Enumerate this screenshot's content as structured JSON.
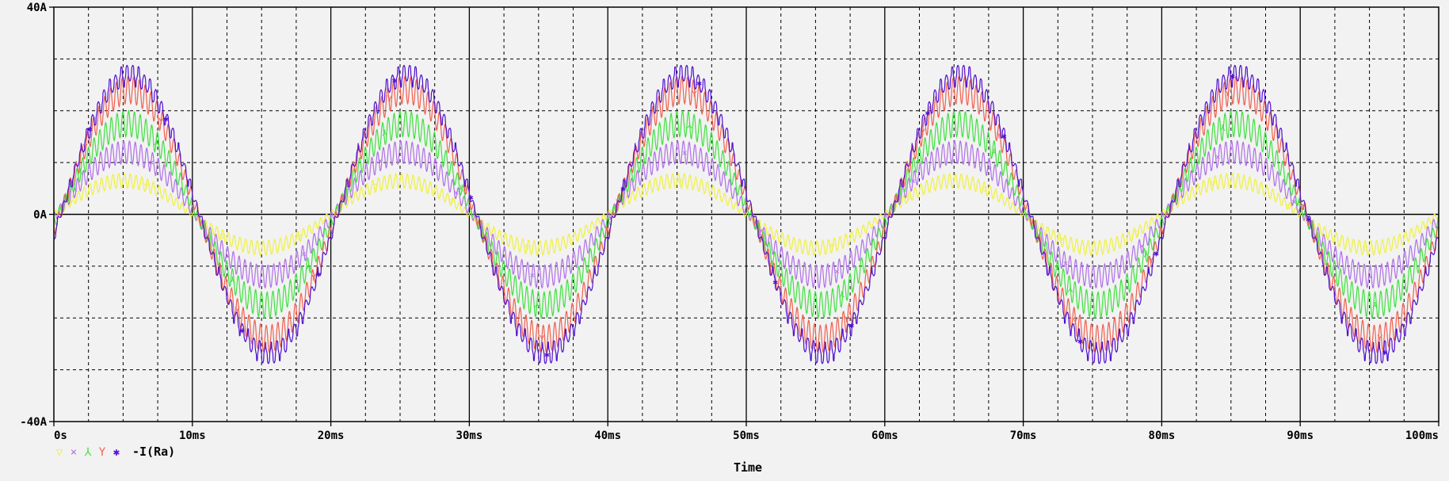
{
  "chart_data": {
    "type": "line",
    "xlabel": "Time",
    "ylabel": "",
    "xlim": [
      0,
      100
    ],
    "ylim": [
      -40,
      40
    ],
    "x_unit": "ms",
    "y_unit": "A",
    "x_tick_labels": [
      "0s",
      "10ms",
      "20ms",
      "30ms",
      "40ms",
      "50ms",
      "60ms",
      "70ms",
      "80ms",
      "90ms",
      "100ms"
    ],
    "y_tick_labels": [
      "40A",
      "0A",
      "-40A"
    ],
    "y_label_values": [
      40,
      0,
      -40
    ],
    "grid": true,
    "frequency_hz": 50,
    "ripple_hz": 2400,
    "legend_position": "bottom-left",
    "legend_trace_label": "-I(Ra)",
    "series": [
      {
        "marker": "▽",
        "color": "#f0f040",
        "amplitude": 6.5,
        "ripple": 1.4,
        "phase_deg": 0,
        "flat_top": false
      },
      {
        "marker": "×",
        "color": "#b070e8",
        "amplitude": 12,
        "ripple": 2.2,
        "phase_deg": 4,
        "flat_top": false
      },
      {
        "marker": "⅄",
        "color": "#40e040",
        "amplitude": 17.5,
        "ripple": 2.5,
        "phase_deg": 6,
        "flat_top": false
      },
      {
        "marker": "Y",
        "color": "#f06050",
        "amplitude": 24,
        "ripple": 2.6,
        "phase_deg": 8,
        "flat_top": false
      },
      {
        "marker": "✱",
        "color": "#5010d0",
        "amplitude": 27,
        "ripple": 1.8,
        "phase_deg": 9,
        "flat_top": true
      }
    ]
  }
}
